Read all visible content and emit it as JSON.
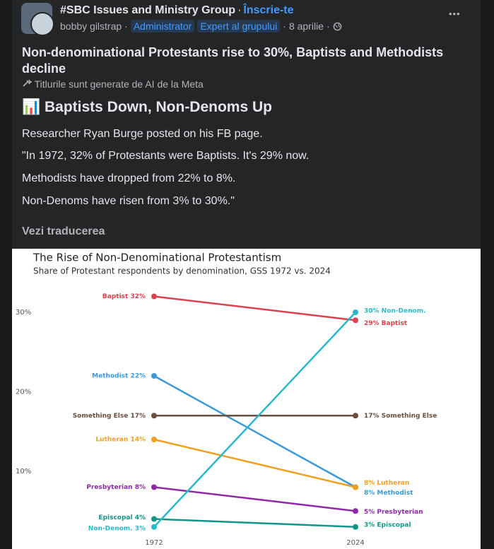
{
  "header": {
    "group": "#SBC Issues and Ministry Group",
    "separator": "·",
    "join": "Înscrie-te",
    "author": "bobby gilstrap",
    "badges": [
      "Administrator",
      "Expert al grupului"
    ],
    "date": "8 aprilie",
    "more": "•••"
  },
  "post": {
    "title": "Non-denominational Protestants rise to 30%, Baptists and Methodists decline",
    "ai_note": "Titlurile sunt generate de AI de la Meta",
    "heading": "📊 Baptists Down, Non-Denoms Up",
    "paragraphs": [
      "Researcher Ryan Burge posted on his FB page.",
      "\"In 1972, 32% of Protestants were Baptists. It's 29% now.",
      "Methodists have dropped from 22% to 8%.",
      "Non-Denoms have risen from 3% to 30%.\""
    ],
    "translate": "Vezi traducerea"
  },
  "chart_data": {
    "type": "line",
    "title": "The Rise of Non-Denominational Protestantism",
    "subtitle": "Share of Protestant respondents by denomination, GSS 1972 vs. 2024",
    "categories": [
      "1972",
      "2024"
    ],
    "ylim": [
      0,
      38
    ],
    "yticks": [
      {
        "value": 10,
        "label": "10%"
      },
      {
        "value": 20,
        "label": "20%"
      },
      {
        "value": 30,
        "label": "30%"
      }
    ],
    "series": [
      {
        "color": "#d9434f",
        "values": [
          32,
          29
        ],
        "value_labels": [
          "Baptist 32%",
          "29% Baptist"
        ]
      },
      {
        "color": "#3a9ad9",
        "values": [
          22,
          8
        ],
        "value_labels": [
          "Methodist 22%",
          "8% Methodist"
        ]
      },
      {
        "color": "#6b4e3d",
        "values": [
          17,
          17
        ],
        "value_labels": [
          "Something Else 17%",
          "17% Something Else"
        ]
      },
      {
        "color": "#f0a020",
        "values": [
          14,
          8
        ],
        "value_labels": [
          "Lutheran 14%",
          "8% Lutheran"
        ]
      },
      {
        "color": "#8e2aa8",
        "values": [
          8,
          5
        ],
        "value_labels": [
          "Presbyterian 8%",
          "5% Presbyterian"
        ]
      },
      {
        "color": "#12968a",
        "values": [
          4,
          3
        ],
        "value_labels": [
          "Episcopal 4%",
          "3% Episcopal"
        ]
      },
      {
        "color": "#29b8c8",
        "values": [
          3,
          30
        ],
        "value_labels": [
          "Non-Denom. 3%",
          "30% Non-Denom."
        ]
      }
    ]
  }
}
